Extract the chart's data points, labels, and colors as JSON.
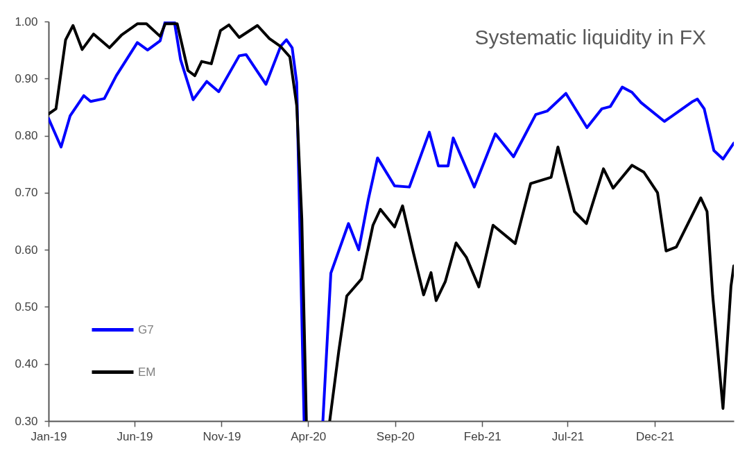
{
  "chart_data": {
    "type": "line",
    "title": "Systematic liquidity in FX",
    "xlim": [
      "2019-01-01",
      "2022-04-19"
    ],
    "ylim": [
      0.3,
      1.0
    ],
    "xticks": [
      {
        "value": "2019-01-01",
        "label": "Jan-19"
      },
      {
        "value": "2019-06-01",
        "label": "Jun-19"
      },
      {
        "value": "2019-11-01",
        "label": "Nov-19"
      },
      {
        "value": "2020-04-01",
        "label": "Apr-20"
      },
      {
        "value": "2020-09-01",
        "label": "Sep-20"
      },
      {
        "value": "2021-02-01",
        "label": "Feb-21"
      },
      {
        "value": "2021-07-01",
        "label": "Jul-21"
      },
      {
        "value": "2021-12-01",
        "label": "Dec-21"
      }
    ],
    "yticks": [
      {
        "value": 0.3,
        "label": "0.30"
      },
      {
        "value": 0.4,
        "label": "0.40"
      },
      {
        "value": 0.5,
        "label": "0.50"
      },
      {
        "value": 0.6,
        "label": "0.60"
      },
      {
        "value": 0.7,
        "label": "0.70"
      },
      {
        "value": 0.8,
        "label": "0.80"
      },
      {
        "value": 0.9,
        "label": "0.90"
      },
      {
        "value": 1.0,
        "label": "1.00"
      }
    ],
    "grid": false,
    "legend": "bottom left",
    "marker": "none",
    "line_style": "solid",
    "series": [
      {
        "name": "G7",
        "color": "#0000ff",
        "x": [
          "2019-01-01",
          "2019-01-23",
          "2019-02-08",
          "2019-03-04",
          "2019-03-16",
          "2019-04-09",
          "2019-04-30",
          "2019-06-06",
          "2019-06-24",
          "2019-07-16",
          "2019-07-25",
          "2019-08-10",
          "2019-08-21",
          "2019-09-12",
          "2019-10-06",
          "2019-10-27",
          "2019-12-02",
          "2019-12-14",
          "2020-01-18",
          "2020-02-13",
          "2020-02-23",
          "2020-03-04",
          "2020-03-12",
          "2020-03-25",
          "2020-04-10",
          "2020-04-27",
          "2020-05-11",
          "2020-06-11",
          "2020-06-29",
          "2020-07-16",
          "2020-08-01",
          "2020-08-31",
          "2020-09-26",
          "2020-10-31",
          "2020-11-16",
          "2020-12-03",
          "2020-12-12",
          "2021-01-18",
          "2021-02-24",
          "2021-03-28",
          "2021-05-06",
          "2021-05-26",
          "2021-06-28",
          "2021-08-04",
          "2021-08-30",
          "2021-09-14",
          "2021-10-05",
          "2021-10-22",
          "2021-11-07",
          "2021-12-18",
          "2021-12-31",
          "2022-02-06",
          "2022-02-14",
          "2022-02-26",
          "2022-03-15",
          "2022-03-31",
          "2022-04-19"
        ],
        "values": [
          0.83,
          0.78,
          0.835,
          0.87,
          0.86,
          0.865,
          0.905,
          0.963,
          0.95,
          0.966,
          1.0,
          1.0,
          0.933,
          0.863,
          0.895,
          0.877,
          0.94,
          0.942,
          0.89,
          0.957,
          0.968,
          0.954,
          0.893,
          0.3,
          null,
          0.3,
          0.559,
          0.646,
          0.6,
          0.689,
          0.761,
          0.712,
          0.71,
          0.806,
          0.747,
          0.747,
          0.796,
          0.71,
          0.803,
          0.763,
          0.837,
          0.843,
          0.874,
          0.814,
          0.847,
          0.851,
          0.885,
          0.876,
          0.858,
          0.825,
          0.834,
          0.86,
          0.864,
          0.847,
          0.774,
          0.759,
          0.787
        ]
      },
      {
        "name": "EM",
        "color": "#000000",
        "x": [
          "2019-01-01",
          "2019-01-14",
          "2019-01-31",
          "2019-02-13",
          "2019-03-01",
          "2019-03-21",
          "2019-04-18",
          "2019-05-09",
          "2019-06-06",
          "2019-06-22",
          "2019-07-16",
          "2019-07-25",
          "2019-08-15",
          "2019-09-03",
          "2019-09-15",
          "2019-09-27",
          "2019-10-14",
          "2019-10-30",
          "2019-11-14",
          "2019-12-02",
          "2020-01-03",
          "2020-01-24",
          "2020-02-13",
          "2020-02-29",
          "2020-03-12",
          "2020-03-21",
          "2020-03-29",
          "2020-04-20",
          "2020-05-09",
          "2020-05-25",
          "2020-06-08",
          "2020-07-04",
          "2020-07-24",
          "2020-08-06",
          "2020-08-31",
          "2020-09-14",
          "2020-10-03",
          "2020-10-21",
          "2020-11-03",
          "2020-11-12",
          "2020-11-28",
          "2020-12-17",
          "2021-01-04",
          "2021-01-26",
          "2021-02-20",
          "2021-03-31",
          "2021-04-27",
          "2021-06-02",
          "2021-06-14",
          "2021-07-13",
          "2021-08-03",
          "2021-09-02",
          "2021-09-19",
          "2021-10-22",
          "2021-11-12",
          "2021-12-06",
          "2021-12-21",
          "2022-01-08",
          "2022-02-20",
          "2022-03-03",
          "2022-03-13",
          "2022-03-31",
          "2022-04-14",
          "2022-04-19"
        ],
        "values": [
          0.838,
          0.847,
          0.968,
          0.993,
          0.951,
          0.978,
          0.954,
          0.976,
          0.996,
          0.996,
          0.974,
          0.996,
          0.996,
          0.914,
          0.905,
          0.93,
          0.926,
          0.984,
          0.994,
          0.972,
          0.993,
          0.97,
          0.956,
          0.938,
          0.853,
          0.654,
          0.3,
          null,
          0.3,
          0.423,
          0.519,
          0.549,
          0.643,
          0.671,
          0.64,
          0.677,
          0.595,
          0.521,
          0.56,
          0.511,
          0.544,
          0.612,
          0.587,
          0.535,
          0.643,
          0.611,
          0.716,
          0.727,
          0.78,
          0.667,
          0.646,
          0.742,
          0.708,
          0.748,
          0.736,
          0.7,
          0.598,
          0.605,
          0.691,
          0.667,
          0.519,
          0.322,
          0.536,
          0.572
        ]
      }
    ]
  }
}
